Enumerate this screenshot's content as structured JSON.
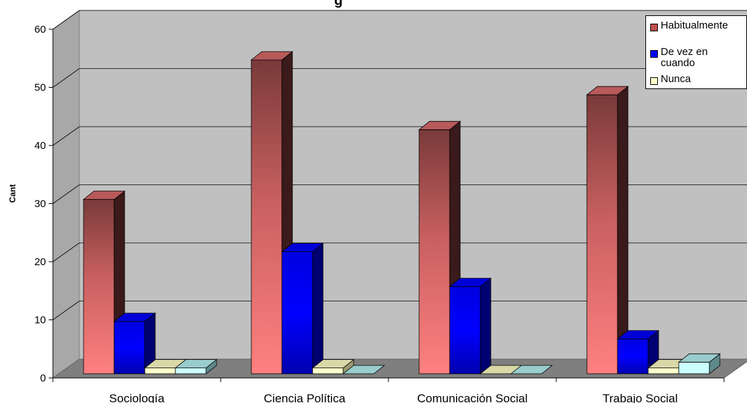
{
  "chart_data": {
    "type": "bar",
    "title": "",
    "title_partial": "g",
    "xlabel": "",
    "ylabel": "Cant",
    "ylim": [
      0,
      60
    ],
    "yticks": [
      0,
      10,
      20,
      30,
      40,
      50,
      60
    ],
    "grid": true,
    "legend_position": "top-right",
    "categories": [
      "Sociología",
      "Ciencia Política",
      "Comunicación Social",
      "Trabajo Social"
    ],
    "series": [
      {
        "name": "Habitualmente",
        "values": [
          30,
          54,
          42,
          48
        ],
        "color": "#c0504d"
      },
      {
        "name": "De vez en cuando",
        "values": [
          9,
          21,
          15,
          6
        ],
        "color": "#0000ff"
      },
      {
        "name": "Nunca",
        "values": [
          1,
          1,
          0,
          1
        ],
        "color": "#ffffcc"
      },
      {
        "name": "",
        "values": [
          1,
          0,
          0,
          2
        ],
        "color": "#ccffff"
      }
    ]
  }
}
